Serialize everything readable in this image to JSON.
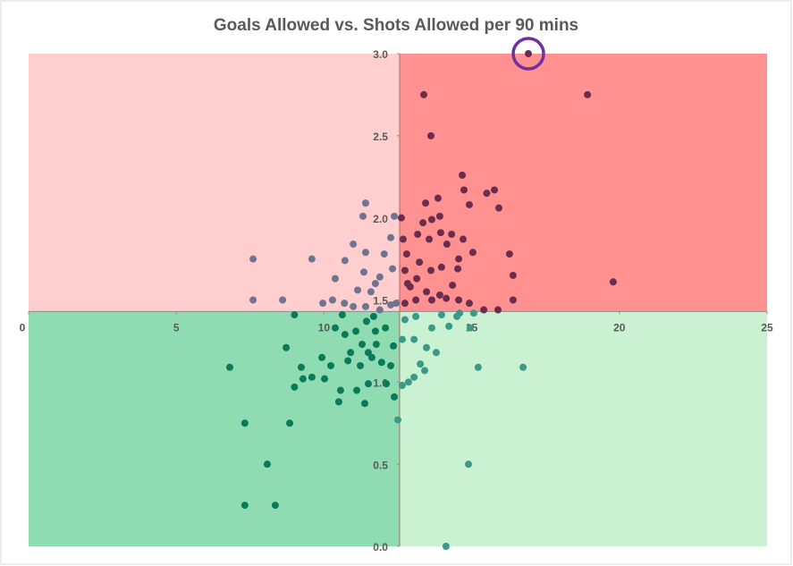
{
  "chart_data": {
    "type": "scatter",
    "title": "Goals Allowed vs. Shots Allowed per 90 mins",
    "xlim": [
      0,
      25
    ],
    "ylim": [
      0,
      3
    ],
    "xticks": [
      0,
      5,
      10,
      15,
      20,
      25
    ],
    "yticks": [
      {
        "value": 0,
        "label": "0.0"
      },
      {
        "value": 0.5,
        "label": "0.5"
      },
      {
        "value": 1,
        "label": "1.0"
      },
      {
        "value": 1.5,
        "label": "1.5"
      },
      {
        "value": 2,
        "label": "2.0"
      },
      {
        "value": 2.5,
        "label": "2.5"
      },
      {
        "value": 3,
        "label": "3.0"
      }
    ],
    "quadrant_split": {
      "x": 12.56,
      "y": 1.43
    },
    "quadrant_colors": {
      "top_left": "#ffcfcf",
      "top_right": "#ff9191",
      "bottom_left": "#8fdcb3",
      "bottom_right": "#c9f1d2"
    },
    "highlight": {
      "series": 0,
      "index": 0,
      "color": "#7030a0"
    },
    "series": [
      {
        "color": "#6b2d4e",
        "x": [
          16.92,
          13.38,
          18.92,
          13.62,
          19.79,
          14.68,
          14.74,
          15.51,
          15.77,
          13.86,
          13.44,
          14.92,
          15.92,
          13.92,
          13.35,
          12.62,
          13.65,
          13.17,
          12.68,
          13.95,
          13.56,
          14.32,
          14.71,
          12.8,
          14.16,
          15.04,
          16.28,
          14.56,
          12.74,
          13.23,
          13.62,
          13.98,
          14.53,
          13.14,
          14.35,
          16.4,
          12.92,
          13.47,
          13.92,
          14.56,
          14.92,
          15.41,
          15.89,
          16.4,
          12.74,
          13.11,
          13.65,
          14.14,
          12.83
        ],
        "y": [
          3.0,
          2.75,
          2.75,
          2.5,
          1.61,
          2.26,
          2.17,
          2.15,
          2.17,
          2.12,
          2.09,
          2.08,
          2.06,
          2.01,
          1.97,
          2.0,
          1.99,
          1.9,
          1.87,
          1.91,
          1.87,
          1.9,
          1.87,
          1.78,
          1.84,
          1.79,
          1.78,
          1.75,
          1.68,
          1.73,
          1.68,
          1.7,
          1.69,
          1.63,
          1.59,
          1.65,
          1.58,
          1.55,
          1.53,
          1.5,
          1.48,
          1.44,
          1.44,
          1.5,
          1.48,
          1.5,
          1.5,
          1.51,
          1.6
        ]
      },
      {
        "color": "#6f7590",
        "x": [
          7.6,
          9.59,
          10.71,
          7.6,
          8.6,
          9.96,
          10.29,
          10.38,
          11.41,
          11.32,
          12.38,
          10.99,
          11.41,
          11.35,
          11.89,
          11.59,
          11.14,
          12.04,
          12.26,
          11.74,
          10.69,
          11.41,
          11.89,
          12.26,
          12.32,
          12.44,
          10.99
        ],
        "y": [
          1.75,
          1.75,
          1.74,
          1.5,
          1.5,
          1.48,
          1.5,
          1.63,
          2.09,
          2.01,
          2.01,
          1.84,
          1.79,
          1.67,
          1.64,
          1.55,
          1.56,
          1.78,
          1.88,
          1.6,
          1.48,
          1.46,
          1.44,
          1.47,
          1.69,
          1.48,
          1.46
        ]
      },
      {
        "color": "#0b7a58",
        "x": [
          6.81,
          7.32,
          7.32,
          8.08,
          8.35,
          8.84,
          8.72,
          9.0,
          9.23,
          9.0,
          9.29,
          9.59,
          9.93,
          10.02,
          10.23,
          10.38,
          10.71,
          10.5,
          10.56,
          10.81,
          11.08,
          11.23,
          11.11,
          11.38,
          11.5,
          11.62,
          11.77,
          11.95,
          12.11,
          12.26,
          12.35,
          12.38,
          10.62,
          11.44,
          11.68,
          12.08,
          10.9,
          11.5,
          11.74,
          11.29
        ],
        "y": [
          1.09,
          0.75,
          0.25,
          0.5,
          0.25,
          0.75,
          1.21,
          1.41,
          1.09,
          0.97,
          1.02,
          1.03,
          1.15,
          1.02,
          1.1,
          1.33,
          1.29,
          0.88,
          0.95,
          1.13,
          1.31,
          1.1,
          0.95,
          0.87,
          0.99,
          1.15,
          1.23,
          1.12,
          0.99,
          1.1,
          1.22,
          0.91,
          1.41,
          1.37,
          1.4,
          1.33,
          1.18,
          1.18,
          1.31,
          1.23
        ]
      },
      {
        "color": "#3b9a86",
        "x": [
          14.13,
          14.89,
          12.5,
          15.22,
          16.74,
          12.86,
          12.65,
          13.26,
          13.8,
          13.47,
          13.05,
          12.65,
          13.65,
          14.23,
          14.95,
          15.07,
          14.5,
          13.98,
          13.11,
          12.74,
          13.05,
          13.41,
          14.59
        ],
        "y": [
          0.0,
          0.5,
          0.77,
          1.09,
          1.09,
          1.0,
          0.98,
          1.11,
          1.18,
          1.21,
          1.26,
          1.26,
          1.33,
          1.34,
          1.33,
          1.42,
          1.4,
          1.41,
          1.4,
          1.38,
          1.03,
          1.07,
          1.42
        ]
      }
    ]
  }
}
